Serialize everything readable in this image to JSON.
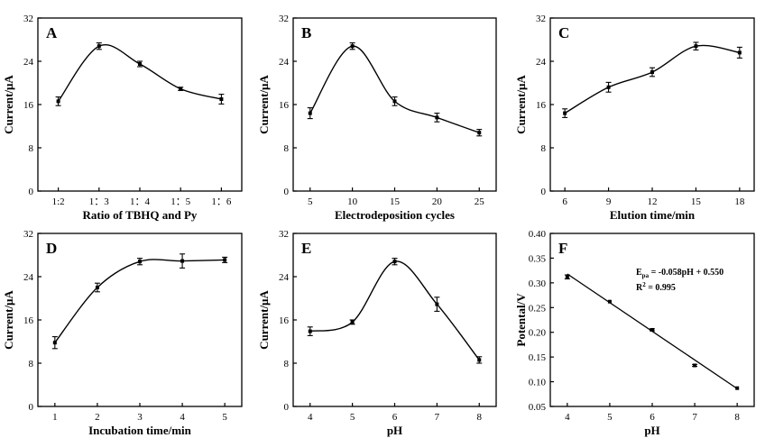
{
  "chart_data": [
    {
      "type": "line",
      "panel_label": "A",
      "xlabel": "Ratio of TBHQ and Py",
      "ylabel": "Current/μA",
      "x_scale": "categorical",
      "categories": [
        "1:2",
        "1：3",
        "1：4",
        "1：5",
        "1：6"
      ],
      "ylim": [
        0,
        32
      ],
      "yticks": [
        "0",
        "8",
        "16",
        "24",
        "32"
      ],
      "series": [
        {
          "values": [
            16.6,
            26.8,
            23.5,
            18.9,
            17.0
          ],
          "errors": [
            0.8,
            0.6,
            0.5,
            0.3,
            0.9
          ]
        }
      ]
    },
    {
      "type": "line",
      "panel_label": "B",
      "xlabel": "Electrodeposition cycles",
      "ylabel": "Current/μA",
      "x_scale": "linear",
      "xlim": [
        3,
        27
      ],
      "xticks": [
        5,
        10,
        15,
        20,
        25
      ],
      "ylim": [
        0,
        32
      ],
      "yticks": [
        "0",
        "8",
        "16",
        "24",
        "32"
      ],
      "series": [
        {
          "x": [
            5,
            10,
            15,
            20,
            25
          ],
          "values": [
            14.4,
            26.8,
            16.6,
            13.6,
            10.8
          ],
          "errors": [
            1.0,
            0.6,
            0.8,
            0.8,
            0.6
          ]
        }
      ]
    },
    {
      "type": "line",
      "panel_label": "C",
      "xlabel": "Elution time/min",
      "ylabel": "Current/μA",
      "x_scale": "linear",
      "xlim": [
        5,
        19
      ],
      "xticks": [
        6,
        9,
        12,
        15,
        18
      ],
      "ylim": [
        0,
        32
      ],
      "yticks": [
        "0",
        "8",
        "16",
        "24",
        "32"
      ],
      "series": [
        {
          "x": [
            6,
            9,
            12,
            15,
            18
          ],
          "values": [
            14.4,
            19.2,
            22.0,
            26.8,
            25.6
          ],
          "errors": [
            0.8,
            0.9,
            0.8,
            0.7,
            1.0
          ]
        }
      ]
    },
    {
      "type": "line",
      "panel_label": "D",
      "xlabel": "Incubation time/min",
      "ylabel": "Current/μA",
      "x_scale": "linear",
      "xlim": [
        0.6,
        5.4
      ],
      "xticks": [
        1,
        2,
        3,
        4,
        5
      ],
      "ylim": [
        0,
        32
      ],
      "yticks": [
        "0",
        "8",
        "16",
        "24",
        "32"
      ],
      "series": [
        {
          "x": [
            1,
            2,
            3,
            4,
            5
          ],
          "values": [
            11.8,
            22.0,
            26.8,
            26.9,
            27.1
          ],
          "errors": [
            1.1,
            0.8,
            0.6,
            1.3,
            0.5
          ]
        }
      ]
    },
    {
      "type": "line",
      "panel_label": "E",
      "xlabel": "pH",
      "ylabel": "Current/μA",
      "x_scale": "linear",
      "xlim": [
        3.6,
        8.4
      ],
      "xticks": [
        4,
        5,
        6,
        7,
        8
      ],
      "ylim": [
        0,
        32
      ],
      "yticks": [
        "0",
        "8",
        "16",
        "24",
        "32"
      ],
      "series": [
        {
          "x": [
            4,
            5,
            6,
            7,
            8
          ],
          "values": [
            13.9,
            15.6,
            26.8,
            18.9,
            8.6
          ],
          "errors": [
            0.8,
            0.4,
            0.6,
            1.3,
            0.6
          ]
        }
      ]
    },
    {
      "type": "scatter",
      "panel_label": "F",
      "xlabel": "pH",
      "ylabel": "Potental/V",
      "x_scale": "linear",
      "xlim": [
        3.6,
        8.4
      ],
      "xticks": [
        4,
        5,
        6,
        7,
        8
      ],
      "ylim": [
        0.05,
        0.4
      ],
      "yticks": [
        "0.05",
        "0.10",
        "0.15",
        "0.20",
        "0.25",
        "0.30",
        "0.35",
        "0.40"
      ],
      "series": [
        {
          "x": [
            4,
            5,
            6,
            7,
            8
          ],
          "values": [
            0.312,
            0.262,
            0.205,
            0.133,
            0.087
          ],
          "errors": [
            0.004,
            0,
            0.002,
            0.002,
            0
          ]
        }
      ],
      "fit": {
        "slope": -0.058,
        "intercept": 0.55,
        "x_range": [
          4,
          8
        ]
      },
      "annotation": {
        "line1_main": "E",
        "line1_sub": "pa",
        "line1_rest": " = -0.058pH + 0.550",
        "line2_main": "R",
        "line2_sup": "2",
        "line2_rest": " = 0.995"
      }
    }
  ]
}
